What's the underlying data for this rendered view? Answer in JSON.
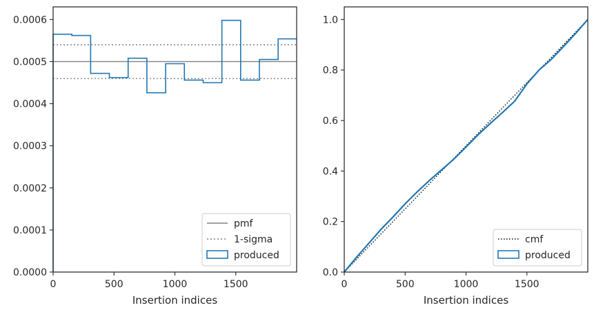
{
  "chart_data": [
    {
      "type": "line",
      "xlabel": "Insertion indices",
      "ylabel": "",
      "xlim": [
        0,
        2000
      ],
      "ylim": [
        0,
        0.00063
      ],
      "x_ticks": [
        0,
        500,
        1000,
        1500
      ],
      "x_tick_labels": [
        "0",
        "500",
        "1000",
        "1500"
      ],
      "y_ticks": [
        0,
        0.0001,
        0.0002,
        0.0003,
        0.0004,
        0.0005,
        0.0006
      ],
      "y_tick_labels": [
        "0.0000",
        "0.0001",
        "0.0002",
        "0.0003",
        "0.0004",
        "0.0005",
        "0.0006"
      ],
      "grid": false,
      "legend_position": "bottom-right",
      "series": [
        {
          "name": "pmf",
          "style": "solid",
          "color": "#808080",
          "x": [
            0,
            2000
          ],
          "y": [
            0.0005,
            0.0005
          ]
        },
        {
          "name": "1-sigma",
          "style": "dotted",
          "color": "#808080",
          "x": [
            0,
            2000
          ],
          "y": [
            0.00054,
            0.00054
          ],
          "y2": [
            0.00046,
            0.00046
          ]
        },
        {
          "name": "produced",
          "style": "step",
          "color": "#1f77b4",
          "bin_edges": [
            0,
            154,
            308,
            462,
            616,
            770,
            924,
            1078,
            1232,
            1386,
            1540,
            1694,
            1848,
            2000
          ],
          "values": [
            0.000565,
            0.000562,
            0.000472,
            0.000462,
            0.000508,
            0.000426,
            0.000495,
            0.000456,
            0.00045,
            0.000598,
            0.000456,
            0.000505,
            0.000554
          ]
        }
      ]
    },
    {
      "type": "line",
      "xlabel": "Insertion indices",
      "ylabel": "",
      "xlim": [
        0,
        2000
      ],
      "ylim": [
        0,
        1.05
      ],
      "x_ticks": [
        0,
        500,
        1000,
        1500
      ],
      "x_tick_labels": [
        "0",
        "500",
        "1000",
        "1500"
      ],
      "y_ticks": [
        0,
        0.2,
        0.4,
        0.6,
        0.8,
        1.0
      ],
      "y_tick_labels": [
        "0.0",
        "0.2",
        "0.4",
        "0.6",
        "0.8",
        "1.0"
      ],
      "grid": false,
      "legend_position": "bottom-right",
      "series": [
        {
          "name": "cmf",
          "style": "dotted",
          "color": "#000000",
          "x": [
            0,
            2000
          ],
          "y": [
            0,
            1.0
          ]
        },
        {
          "name": "produced",
          "style": "solid",
          "color": "#1f77b4",
          "x": [
            0,
            100,
            200,
            300,
            400,
            500,
            600,
            700,
            800,
            900,
            1000,
            1100,
            1200,
            1300,
            1400,
            1500,
            1600,
            1700,
            1800,
            1900,
            2000
          ],
          "y": [
            0,
            0.058,
            0.113,
            0.168,
            0.218,
            0.27,
            0.318,
            0.363,
            0.405,
            0.447,
            0.495,
            0.544,
            0.589,
            0.632,
            0.677,
            0.745,
            0.8,
            0.842,
            0.893,
            0.945,
            1.0
          ]
        }
      ]
    }
  ]
}
